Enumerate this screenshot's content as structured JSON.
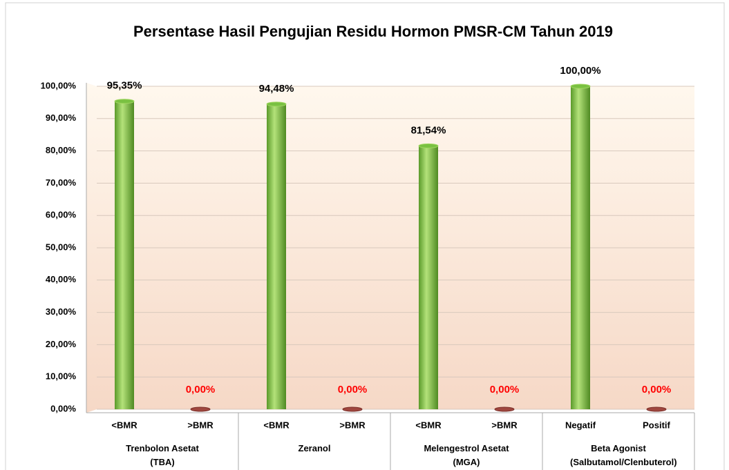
{
  "chart_data": {
    "type": "bar",
    "title": "Persentase Hasil Pengujian Residu Hormon PMSR-CM Tahun 2019",
    "groups": [
      {
        "name": "Trenbolon Asetat (TBA)",
        "categories": [
          "<BMR",
          ">BMR"
        ],
        "values": [
          95.35,
          0
        ],
        "value_labels": [
          "95,35%",
          "0,00%"
        ]
      },
      {
        "name": "Zeranol",
        "categories": [
          "<BMR",
          ">BMR"
        ],
        "values": [
          94.48,
          0
        ],
        "value_labels": [
          "94,48%",
          "0,00%"
        ]
      },
      {
        "name": "Melengestrol Asetat (MGA)",
        "categories": [
          "<BMR",
          ">BMR"
        ],
        "values": [
          81.54,
          0
        ],
        "value_labels": [
          "81,54%",
          "0,00%"
        ]
      },
      {
        "name": "Beta Agonist (Salbutamol/Clenbuterol)",
        "categories": [
          "Negatif",
          "Positif"
        ],
        "values": [
          100,
          0
        ],
        "value_labels": [
          "100,00%",
          "0,00%"
        ]
      }
    ],
    "colors": [
      "#7ac142",
      "#a0473f"
    ],
    "value_label_colors": [
      "#000000",
      "#ff0000"
    ],
    "ylim": [
      0,
      100
    ],
    "yticks": [
      {
        "value": 0,
        "label": "0,00%"
      },
      {
        "value": 10,
        "label": "10,00%"
      },
      {
        "value": 20,
        "label": "20,00%"
      },
      {
        "value": 30,
        "label": "30,00%"
      },
      {
        "value": 40,
        "label": "40,00%"
      },
      {
        "value": 50,
        "label": "50,00%"
      },
      {
        "value": 60,
        "label": "60,00%"
      },
      {
        "value": 70,
        "label": "70,00%"
      },
      {
        "value": 80,
        "label": "80,00%"
      },
      {
        "value": 90,
        "label": "90,00%"
      },
      {
        "value": 100,
        "label": "100,00%"
      }
    ],
    "grid": true
  }
}
